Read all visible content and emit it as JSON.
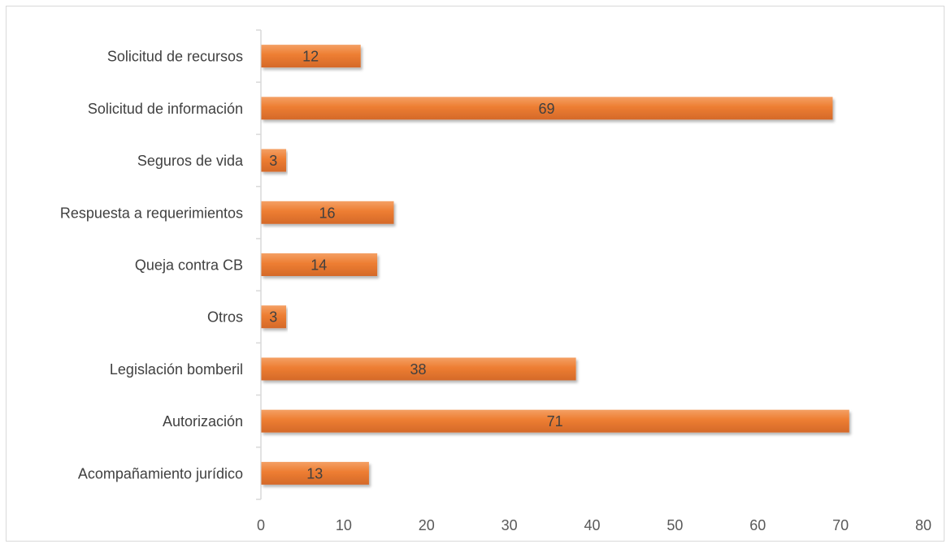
{
  "chart_data": {
    "type": "bar",
    "orientation": "horizontal",
    "title": "",
    "xlabel": "",
    "ylabel": "",
    "categories": [
      "Acompañamiento jurídico",
      "Autorización",
      "Legislación bomberil",
      "Otros",
      "Queja contra CB",
      "Respuesta a requerimientos",
      "Seguros de vida",
      "Solicitud de información",
      "Solicitud de recursos"
    ],
    "values": [
      13,
      71,
      38,
      3,
      14,
      16,
      3,
      69,
      12
    ],
    "xlim": [
      0,
      80
    ],
    "x_ticks": [
      "0",
      "10",
      "20",
      "30",
      "40",
      "50",
      "60",
      "70",
      "80"
    ],
    "grid": false,
    "legend": "none",
    "data_labels": true,
    "colors": {
      "bar": "#ED7D31",
      "bar_light": "#F79646",
      "bar_dark": "#C55A11",
      "axis": "#d9d9d9",
      "text": "#404040"
    }
  }
}
